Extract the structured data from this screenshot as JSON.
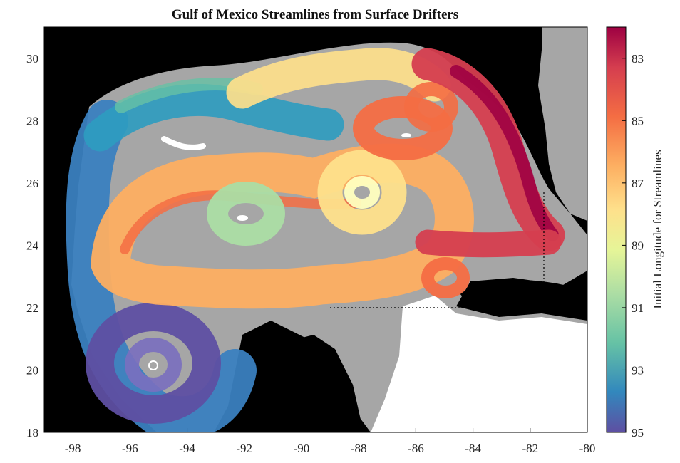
{
  "chart_data": {
    "type": "map-streamlines",
    "title": "Gulf of Mexico Streamlines from Surface Drifters",
    "x_ticks": [
      "-98",
      "-96",
      "-94",
      "-92",
      "-90",
      "-88",
      "-86",
      "-84",
      "-82",
      "-80"
    ],
    "y_ticks": [
      "30",
      "28",
      "26",
      "24",
      "22",
      "20",
      "18"
    ],
    "xlim": [
      -99,
      -80
    ],
    "ylim": [
      18,
      31
    ],
    "colorbar": {
      "label": "Initial Longitude for Streamlines",
      "ticks": [
        "83",
        "85",
        "87",
        "89",
        "91",
        "93",
        "95"
      ],
      "range": [
        82,
        95
      ],
      "colormap": "Spectral (red at 82 to purple at 95)"
    },
    "features": {
      "eddies": [
        {
          "lon": -95.1,
          "lat": 20.2,
          "color_value": 95
        },
        {
          "lon": -92.1,
          "lat": 24.9,
          "color_value": 92
        },
        {
          "lon": -88.1,
          "lat": 25.6,
          "color_value": 88
        },
        {
          "lon": -86.6,
          "lat": 27.5,
          "color_value": 85
        },
        {
          "lon": -85.0,
          "lat": 23.0,
          "color_value": 85
        },
        {
          "lon": -85.2,
          "lat": 28.6,
          "color_value": 84.5
        }
      ],
      "dotted_box": {
        "lon_min": -89.0,
        "lat_min": 22.1,
        "lon_max": -81.5,
        "lat_max": 25.8
      }
    },
    "colors": {
      "land": "#000000",
      "shelf": "#a6a6a6",
      "no_data": "#ffffff"
    }
  }
}
